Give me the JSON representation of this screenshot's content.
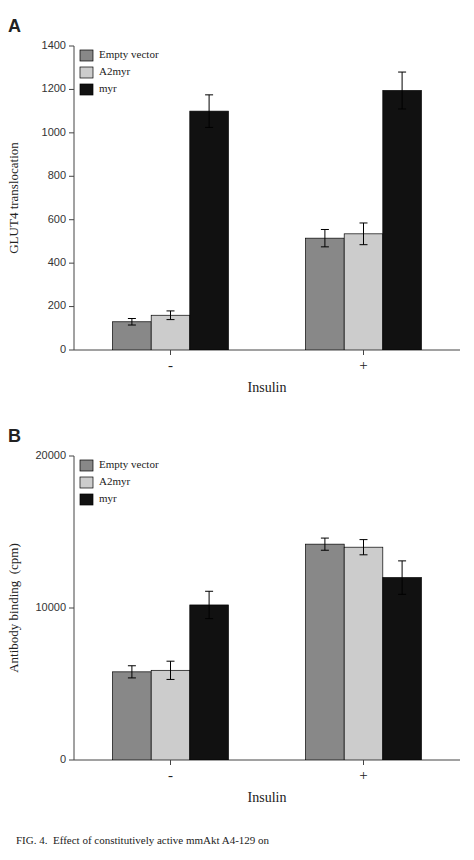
{
  "chart_data": [
    {
      "type": "bar",
      "title": "A",
      "xlabel": "Insulin",
      "ylabel": "GLUT4 translocation",
      "categories": [
        "-",
        "+"
      ],
      "series": [
        {
          "name": "Empty vector",
          "color": "#888888",
          "values": [
            130,
            515
          ],
          "errors": [
            15,
            40
          ]
        },
        {
          "name": "A2myr",
          "color": "#cccccc",
          "values": [
            160,
            535
          ],
          "errors": [
            20,
            50
          ]
        },
        {
          "name": "myr",
          "color": "#111111",
          "values": [
            1100,
            1195
          ],
          "errors": [
            75,
            85
          ]
        }
      ],
      "ylim": [
        0,
        1400
      ],
      "yticks": [
        0,
        200,
        400,
        600,
        800,
        1000,
        1200,
        1400
      ],
      "grid": false,
      "legend": "upper left"
    },
    {
      "type": "bar",
      "title": "B",
      "xlabel": "Insulin",
      "ylabel": "Antibody binding  (cpm)",
      "categories": [
        "-",
        "+"
      ],
      "series": [
        {
          "name": "Empty vector",
          "color": "#888888",
          "values": [
            5800,
            14200
          ],
          "errors": [
            400,
            400
          ]
        },
        {
          "name": "A2myr",
          "color": "#cccccc",
          "values": [
            5900,
            14000
          ],
          "errors": [
            600,
            500
          ]
        },
        {
          "name": "myr",
          "color": "#111111",
          "values": [
            10200,
            12000
          ],
          "errors": [
            900,
            1100
          ]
        }
      ],
      "ylim": [
        0,
        20000
      ],
      "yticks": [
        0,
        10000,
        20000
      ],
      "grid": false,
      "legend": "upper left"
    }
  ],
  "caption": "FIG. 4.  Effect of constitutively active mmAkt A4-129 on"
}
